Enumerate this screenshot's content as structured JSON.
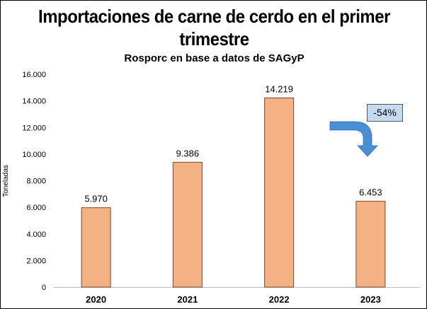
{
  "colors": {
    "bar_fill": "#f4b183",
    "bar_stroke": "#7a4a2a",
    "arrow": "#4a8fd6",
    "badge_fill": "#c5d9f1"
  },
  "chart_data": {
    "type": "bar",
    "title": "Importaciones de carne de cerdo en el primer trimestre",
    "subtitle": "Rosporc en base a datos de SAGyP",
    "xlabel": "",
    "ylabel": "Toneladas",
    "categories": [
      "2020",
      "2021",
      "2022",
      "2023"
    ],
    "values": [
      5970,
      9386,
      14219,
      6453
    ],
    "data_labels": [
      "5.970",
      "9.386",
      "14.219",
      "6.453"
    ],
    "ylim": [
      0,
      16000
    ],
    "yticks": [
      0,
      2000,
      4000,
      6000,
      8000,
      10000,
      12000,
      14000,
      16000
    ],
    "ytick_labels": [
      "0",
      "2.000",
      "4.000",
      "6.000",
      "8.000",
      "10.000",
      "12.000",
      "14.000",
      "16.000"
    ],
    "grid": false,
    "legend": "none",
    "annotation": {
      "text": "-54%",
      "icon": "bent-arrow-down-icon"
    }
  }
}
